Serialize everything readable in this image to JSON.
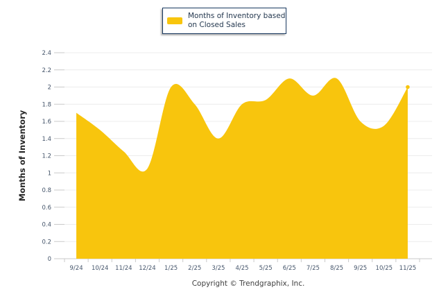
{
  "colors": {
    "area": "#F8C50D",
    "legend_border": "#17375E",
    "legend_text": "#24384F",
    "tick_label": "#44546A",
    "gridline": "#ECECEC",
    "axis_line": "#C9C9C9",
    "ytitle": "#262626",
    "copyright": "#3F3F3F"
  },
  "legend": {
    "label": "Months of Inventory based on Closed Sales",
    "label_lines": [
      "Months of Inventory based",
      "on Closed Sales"
    ]
  },
  "footer": {
    "copyright": "Copyright © Trendgraphix, Inc."
  },
  "chart_data": {
    "type": "area",
    "title": "Months of Inventory based on Closed Sales",
    "categories": [
      "9/24",
      "10/24",
      "11/24",
      "12/24",
      "1/25",
      "2/25",
      "3/25",
      "4/25",
      "5/25",
      "6/25",
      "7/25",
      "8/25",
      "9/25",
      "10/25",
      "11/25"
    ],
    "series": [
      {
        "name": "Months of Inventory based on Closed Sales",
        "values": [
          1.7,
          1.5,
          1.25,
          1.05,
          2.0,
          1.8,
          1.4,
          1.8,
          1.85,
          2.1,
          1.9,
          2.1,
          1.6,
          1.55,
          2.0
        ]
      }
    ],
    "xlabel": "",
    "ylabel": "Months of Inventory",
    "ylim": [
      0,
      2.4
    ],
    "ytick_step": 0.2,
    "grid": true,
    "smoothing": "spline",
    "legend_position": "top-center"
  }
}
